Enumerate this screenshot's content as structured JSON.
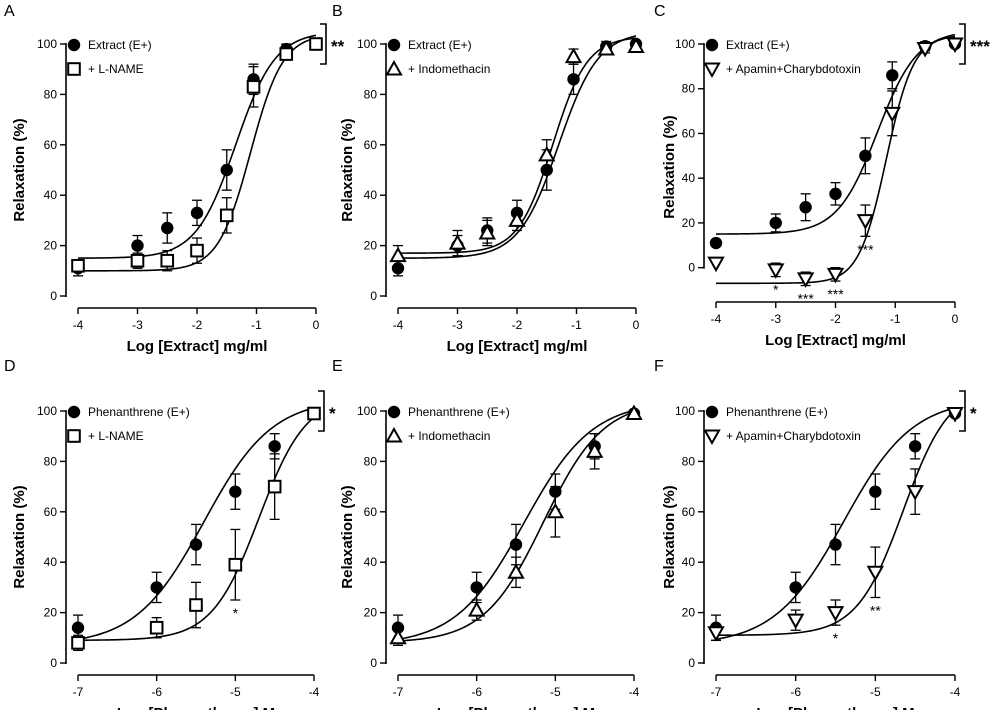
{
  "chart_data": [
    {
      "panel": "A",
      "type": "scatter",
      "xlabel": "Log [Extract] mg/ml",
      "ylabel": "Relaxation (%)",
      "xlim": [
        -4,
        0
      ],
      "ylim": [
        0,
        100
      ],
      "xticks": [
        -4,
        -3,
        -2,
        -1,
        0
      ],
      "xtick_labels": [
        "-4",
        "-3",
        "-2",
        "-1",
        "0"
      ],
      "yticks": [
        0,
        20,
        40,
        60,
        80,
        100
      ],
      "ytick_labels": [
        "0",
        "20",
        "40",
        "60",
        "80",
        "100"
      ],
      "bracket_label": "**",
      "series": [
        {
          "name": "Extract (E+)",
          "marker": "circle",
          "filled": true,
          "x": [
            -4,
            -3,
            -2.5,
            -2,
            -1.5,
            -1.05,
            -0.5,
            0
          ],
          "y": [
            11,
            20,
            27,
            33,
            50,
            86,
            98,
            100
          ],
          "err": [
            3,
            4,
            6,
            5,
            8,
            6,
            2,
            1
          ],
          "fit": {
            "bottom": 15,
            "top": 105,
            "logec50": -1.35,
            "hill": 1.3
          }
        },
        {
          "name": "+ L-NAME",
          "marker": "square",
          "filled": false,
          "x": [
            -4,
            -3,
            -2.5,
            -2,
            -1.5,
            -1.05,
            -0.5,
            0
          ],
          "y": [
            12,
            14,
            14,
            18,
            32,
            83,
            96,
            100
          ],
          "err": [
            2,
            3,
            4,
            5,
            7,
            8,
            2,
            1
          ],
          "fit": {
            "bottom": 10,
            "top": 104,
            "logec50": -1.1,
            "hill": 1.6
          }
        }
      ],
      "point_annotations": []
    },
    {
      "panel": "B",
      "type": "scatter",
      "xlabel": "Log [Extract] mg/ml",
      "ylabel": "Relaxation (%)",
      "xlim": [
        -4,
        0
      ],
      "ylim": [
        0,
        100
      ],
      "xticks": [
        -4,
        -3,
        -2,
        -1,
        0
      ],
      "xtick_labels": [
        "-4",
        "-3",
        "-2",
        "-1",
        "0"
      ],
      "yticks": [
        0,
        20,
        40,
        60,
        80,
        100
      ],
      "ytick_labels": [
        "0",
        "20",
        "40",
        "60",
        "80",
        "100"
      ],
      "bracket_label": "",
      "series": [
        {
          "name": "Extract (E+)",
          "marker": "circle",
          "filled": true,
          "x": [
            -4,
            -3,
            -2.5,
            -2,
            -1.5,
            -1.05,
            -0.5,
            0
          ],
          "y": [
            11,
            20,
            26,
            33,
            50,
            86,
            99,
            100
          ],
          "err": [
            3,
            4,
            5,
            5,
            8,
            6,
            2,
            1
          ],
          "fit": {
            "bottom": 15,
            "top": 105,
            "logec50": -1.3,
            "hill": 1.3
          }
        },
        {
          "name": "+ Indomethacin",
          "marker": "triangle-up",
          "filled": false,
          "x": [
            -4,
            -3,
            -2.5,
            -2,
            -1.5,
            -1.05,
            -0.5,
            0
          ],
          "y": [
            16,
            21,
            25,
            30,
            56,
            95,
            98,
            99
          ],
          "err": [
            4,
            5,
            5,
            4,
            6,
            3,
            2,
            1
          ],
          "fit": {
            "bottom": 17,
            "top": 103,
            "logec50": -1.4,
            "hill": 1.5
          }
        }
      ],
      "point_annotations": []
    },
    {
      "panel": "C",
      "type": "scatter",
      "xlabel": "Log [Extract] mg/ml",
      "ylabel": "Relaxation (%)",
      "xlim": [
        -4,
        0
      ],
      "ylim": [
        -10,
        100
      ],
      "xticks": [
        -4,
        -3,
        -2,
        -1,
        0
      ],
      "xtick_labels": [
        "-4",
        "-3",
        "-2",
        "-1",
        "0"
      ],
      "yticks": [
        0,
        20,
        40,
        60,
        80,
        100
      ],
      "ytick_labels": [
        "0",
        "20",
        "40",
        "60",
        "80",
        "100"
      ],
      "bracket_label": "***",
      "series": [
        {
          "name": "Extract (E+)",
          "marker": "circle",
          "filled": true,
          "x": [
            -4,
            -3,
            -2.5,
            -2,
            -1.5,
            -1.05,
            -0.5,
            0
          ],
          "y": [
            11,
            20,
            27,
            33,
            50,
            86,
            99,
            100
          ],
          "err": [
            0,
            4,
            6,
            5,
            8,
            6,
            2,
            1
          ],
          "fit": {
            "bottom": 15,
            "top": 106,
            "logec50": -1.3,
            "hill": 1.3
          }
        },
        {
          "name": "+ Apamin+Charybdotoxin",
          "marker": "triangle-down",
          "filled": false,
          "x": [
            -4,
            -3,
            -2.5,
            -2,
            -1.5,
            -1.05,
            -0.5,
            0
          ],
          "y": [
            2,
            -1,
            -5,
            -3,
            21,
            69,
            98,
            100
          ],
          "err": [
            0,
            3,
            3,
            3,
            7,
            10,
            2,
            1
          ],
          "fit": {
            "bottom": -7,
            "top": 104,
            "logec50": -1.15,
            "hill": 1.9
          }
        }
      ],
      "point_annotations": [
        {
          "x": -3,
          "label": "*"
        },
        {
          "x": -2.5,
          "label": "***"
        },
        {
          "x": -2,
          "label": "***"
        },
        {
          "x": -1.5,
          "label": "***"
        }
      ]
    },
    {
      "panel": "D",
      "type": "scatter",
      "xlabel": "Log [Phenanthrene] M",
      "ylabel": "Relaxation (%)",
      "xlim": [
        -7,
        -4
      ],
      "ylim": [
        0,
        100
      ],
      "xticks": [
        -7,
        -6,
        -5,
        -4
      ],
      "xtick_labels": [
        "-7",
        "-6",
        "-5",
        "-4"
      ],
      "yticks": [
        0,
        20,
        40,
        60,
        80,
        100
      ],
      "ytick_labels": [
        "0",
        "20",
        "40",
        "60",
        "80",
        "100"
      ],
      "bracket_label": "*",
      "series": [
        {
          "name": "Phenanthrene (E+)",
          "marker": "circle",
          "filled": true,
          "x": [
            -7,
            -6,
            -5.5,
            -5,
            -4.5,
            -4
          ],
          "y": [
            14,
            30,
            47,
            68,
            86,
            99
          ],
          "err": [
            5,
            6,
            8,
            7,
            5,
            1
          ],
          "fit": {
            "bottom": 7,
            "top": 105,
            "logec50": -5.4,
            "hill": 1.0
          }
        },
        {
          "name": "+ L-NAME",
          "marker": "square",
          "filled": false,
          "x": [
            -7,
            -6,
            -5.5,
            -5,
            -4.5,
            -4
          ],
          "y": [
            8,
            14,
            23,
            39,
            70,
            99
          ],
          "err": [
            3,
            4,
            9,
            14,
            13,
            1
          ],
          "fit": {
            "bottom": 9,
            "top": 106,
            "logec50": -4.7,
            "hill": 1.45
          }
        }
      ],
      "point_annotations": [
        {
          "x": -5,
          "label": "*"
        }
      ]
    },
    {
      "panel": "E",
      "type": "scatter",
      "xlabel": "Log [Phenanthrene] M",
      "ylabel": "Relaxation (%)",
      "xlim": [
        -7,
        -4
      ],
      "ylim": [
        0,
        100
      ],
      "xticks": [
        -7,
        -6,
        -5,
        -4
      ],
      "xtick_labels": [
        "-7",
        "-6",
        "-5",
        "-4"
      ],
      "yticks": [
        0,
        20,
        40,
        60,
        80,
        100
      ],
      "ytick_labels": [
        "0",
        "20",
        "40",
        "60",
        "80",
        "100"
      ],
      "bracket_label": "",
      "series": [
        {
          "name": "Phenanthrene (E+)",
          "marker": "circle",
          "filled": true,
          "x": [
            -7,
            -6,
            -5.5,
            -5,
            -4.5,
            -4
          ],
          "y": [
            14,
            30,
            47,
            68,
            86,
            99
          ],
          "err": [
            5,
            6,
            8,
            7,
            5,
            1
          ],
          "fit": {
            "bottom": 7,
            "top": 104,
            "logec50": -5.4,
            "hill": 1.0
          }
        },
        {
          "name": "+ Indomethacin",
          "marker": "triangle-up",
          "filled": false,
          "x": [
            -7,
            -6,
            -5.5,
            -5,
            -4.5,
            -4
          ],
          "y": [
            10,
            21,
            36,
            60,
            84,
            99
          ],
          "err": [
            3,
            4,
            6,
            10,
            7,
            1
          ],
          "fit": {
            "bottom": 8,
            "top": 104,
            "logec50": -5.15,
            "hill": 1.15
          }
        }
      ],
      "point_annotations": []
    },
    {
      "panel": "F",
      "type": "scatter",
      "xlabel": "Log [Phenanthrene] M",
      "ylabel": "Relaxation (%)",
      "xlim": [
        -7,
        -4
      ],
      "ylim": [
        0,
        100
      ],
      "xticks": [
        -7,
        -6,
        -5,
        -4
      ],
      "xtick_labels": [
        "-7",
        "-6",
        "-5",
        "-4"
      ],
      "yticks": [
        0,
        20,
        40,
        60,
        80,
        100
      ],
      "ytick_labels": [
        "0",
        "20",
        "40",
        "60",
        "80",
        "100"
      ],
      "bracket_label": "*",
      "series": [
        {
          "name": "Phenanthrene (E+)",
          "marker": "circle",
          "filled": true,
          "x": [
            -7,
            -6,
            -5.5,
            -5,
            -4.5,
            -4
          ],
          "y": [
            14,
            30,
            47,
            68,
            86,
            99
          ],
          "err": [
            5,
            6,
            8,
            7,
            5,
            1
          ],
          "fit": {
            "bottom": 7,
            "top": 105,
            "logec50": -5.4,
            "hill": 1.0
          }
        },
        {
          "name": "+ Apamin+Charybdotoxin",
          "marker": "triangle-down",
          "filled": false,
          "x": [
            -7,
            -6,
            -5.5,
            -5,
            -4.5,
            -4
          ],
          "y": [
            12,
            17,
            20,
            36,
            68,
            99
          ],
          "err": [
            3,
            4,
            5,
            10,
            9,
            1
          ],
          "fit": {
            "bottom": 11,
            "top": 110,
            "logec50": -4.65,
            "hill": 1.5
          }
        }
      ],
      "point_annotations": [
        {
          "x": -5.5,
          "label": "*"
        },
        {
          "x": -5,
          "label": "**"
        }
      ]
    }
  ]
}
